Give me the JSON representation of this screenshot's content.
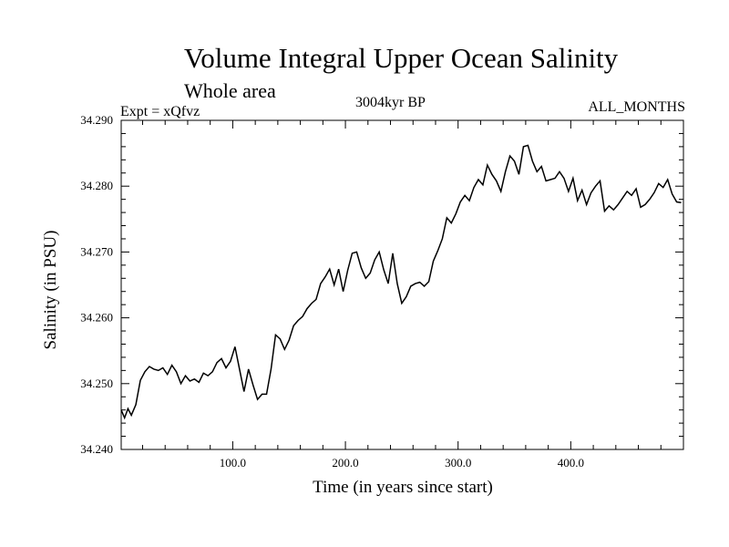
{
  "chart_data": {
    "type": "line",
    "title": "Volume Integral Upper Ocean Salinity",
    "subtitle": "Whole area",
    "experiment": "Expt = xQfvz",
    "period": "3004kyr BP",
    "months": "ALL_MONTHS",
    "xlabel": "Time (in years since start)",
    "ylabel": "Salinity (in PSU)",
    "xlim": [
      1,
      500
    ],
    "ylim": [
      34.24,
      34.29
    ],
    "xticks": [
      100,
      200,
      300,
      400
    ],
    "xtick_labels": [
      "100.0",
      "200.0",
      "300.0",
      "400.0"
    ],
    "yticks": [
      34.24,
      34.25,
      34.26,
      34.27,
      34.28,
      34.29
    ],
    "ytick_labels": [
      "34.240",
      "34.250",
      "34.260",
      "34.270",
      "34.280",
      "34.290"
    ],
    "series": [
      {
        "name": "Salinity",
        "x": [
          1,
          4,
          7,
          10,
          14,
          18,
          22,
          26,
          30,
          34,
          38,
          42,
          46,
          50,
          54,
          58,
          62,
          66,
          70,
          74,
          78,
          82,
          86,
          90,
          94,
          98,
          102,
          106,
          110,
          114,
          118,
          122,
          126,
          130,
          134,
          138,
          142,
          146,
          150,
          154,
          158,
          162,
          166,
          170,
          174,
          178,
          182,
          186,
          190,
          194,
          198,
          202,
          206,
          210,
          214,
          218,
          222,
          226,
          230,
          234,
          238,
          242,
          246,
          250,
          254,
          258,
          262,
          266,
          270,
          274,
          278,
          282,
          286,
          290,
          294,
          298,
          302,
          306,
          310,
          314,
          318,
          322,
          326,
          330,
          334,
          338,
          342,
          346,
          350,
          354,
          358,
          362,
          366,
          370,
          374,
          378,
          382,
          386,
          390,
          394,
          398,
          402,
          406,
          410,
          414,
          418,
          422,
          426,
          430,
          434,
          438,
          442,
          446,
          450,
          454,
          458,
          462,
          466,
          470,
          474,
          478,
          482,
          486,
          490,
          494,
          498
        ],
        "values": [
          34.246,
          34.2448,
          34.2462,
          34.2452,
          34.2468,
          34.2505,
          34.2518,
          34.2526,
          34.2522,
          34.252,
          34.2524,
          34.2514,
          34.2528,
          34.2518,
          34.25,
          34.2512,
          34.2504,
          34.2507,
          34.2502,
          34.2516,
          34.2512,
          34.2518,
          34.2532,
          34.2538,
          34.2524,
          34.2534,
          34.2556,
          34.2522,
          34.2488,
          34.2522,
          34.2498,
          34.2476,
          34.2484,
          34.2484,
          34.2522,
          34.2574,
          34.2568,
          34.2552,
          34.2566,
          34.2588,
          34.2596,
          34.2602,
          34.2614,
          34.2622,
          34.2628,
          34.2652,
          34.2662,
          34.2674,
          34.265,
          34.2674,
          34.264,
          34.2672,
          34.2698,
          34.27,
          34.2676,
          34.266,
          34.2668,
          34.2688,
          34.27,
          34.2673,
          34.2652,
          34.2698,
          34.2652,
          34.2622,
          34.2632,
          34.2648,
          34.2652,
          34.2654,
          34.2648,
          34.2655,
          34.2686,
          34.2702,
          34.272,
          34.2752,
          34.2744,
          34.2758,
          34.2776,
          34.2786,
          34.2778,
          34.2798,
          34.281,
          34.2802,
          34.2832,
          34.2818,
          34.2808,
          34.2792,
          34.2822,
          34.2846,
          34.2838,
          34.2818,
          34.286,
          34.2862,
          34.2838,
          34.2822,
          34.283,
          34.2808,
          34.281,
          34.2812,
          34.2822,
          34.2812,
          34.2792,
          34.2812,
          34.2778,
          34.2794,
          34.2772,
          34.279,
          34.28,
          34.2808,
          34.2762,
          34.277,
          34.2764,
          34.2772,
          34.2782,
          34.2792,
          34.2786,
          34.2796,
          34.2768,
          34.2772,
          34.278,
          34.279,
          34.2804,
          34.2798,
          34.281,
          34.2788,
          34.2776,
          34.2775
        ]
      }
    ]
  }
}
